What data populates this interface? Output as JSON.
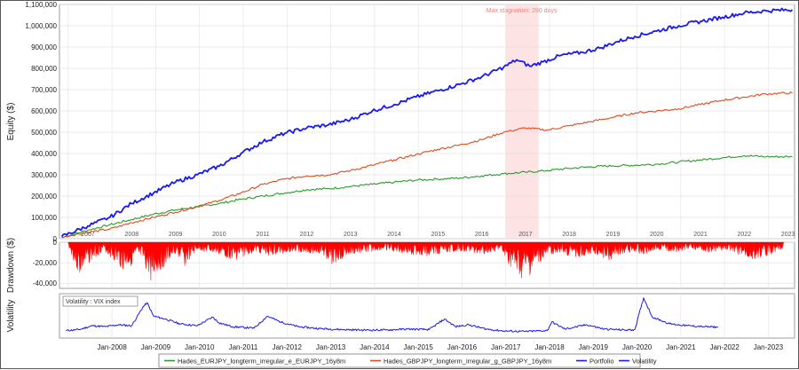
{
  "chart_data": [
    {
      "type": "line",
      "title": "",
      "ylabel": "Equity ($)",
      "ylim": [
        0,
        1100000
      ],
      "yticks": [
        "0",
        "100,000",
        "200,000",
        "300,000",
        "400,000",
        "500,000",
        "600,000",
        "700,000",
        "800,000",
        "900,000",
        "1,000,000",
        "1,100,000"
      ],
      "year_labels": [
        "2007",
        "2008",
        "2009",
        "2010",
        "2011",
        "2012",
        "2013",
        "2014",
        "2015",
        "2016",
        "2017",
        "2018",
        "2019",
        "2020",
        "2021",
        "2022",
        "2023"
      ],
      "grid": true,
      "annotation": {
        "text": "Max stagnation: 280 days",
        "x_start": 2017.05,
        "x_end": 2017.8
      },
      "series": [
        {
          "name": "Hades_EURJPY_longterm_irregular_e_EURJPY_16y8m",
          "color": "#2a9a2a",
          "x": [
            2006.9,
            2007.5,
            2008.0,
            2008.5,
            2009.0,
            2009.5,
            2010.0,
            2010.5,
            2011.0,
            2011.5,
            2012.0,
            2012.5,
            2013.0,
            2013.5,
            2014.0,
            2014.5,
            2015.0,
            2015.5,
            2016.0,
            2016.5,
            2017.0,
            2017.5,
            2018.0,
            2018.5,
            2019.0,
            2019.5,
            2020.0,
            2020.5,
            2021.0,
            2021.5,
            2022.0,
            2022.5,
            2023.0,
            2023.6
          ],
          "y": [
            5000,
            40000,
            65000,
            90000,
            115000,
            135000,
            150000,
            165000,
            185000,
            200000,
            215000,
            230000,
            235000,
            245000,
            255000,
            265000,
            275000,
            280000,
            285000,
            295000,
            305000,
            312000,
            320000,
            330000,
            338000,
            342000,
            345000,
            350000,
            360000,
            370000,
            380000,
            390000,
            385000,
            385000
          ]
        },
        {
          "name": "Hades_GBPJPY_longterm_irregular_g_GBPJPY_16y8m",
          "color": "#e04a20",
          "x": [
            2006.9,
            2007.5,
            2008.0,
            2008.5,
            2009.0,
            2009.5,
            2010.0,
            2010.5,
            2011.0,
            2011.5,
            2012.0,
            2012.5,
            2013.0,
            2013.5,
            2014.0,
            2014.5,
            2015.0,
            2015.5,
            2016.0,
            2016.5,
            2017.0,
            2017.5,
            2018.0,
            2018.5,
            2019.0,
            2019.5,
            2020.0,
            2020.5,
            2021.0,
            2021.5,
            2022.0,
            2022.5,
            2023.0,
            2023.6
          ],
          "y": [
            8000,
            30000,
            45000,
            75000,
            100000,
            125000,
            150000,
            180000,
            215000,
            255000,
            280000,
            295000,
            300000,
            320000,
            345000,
            370000,
            395000,
            420000,
            440000,
            465000,
            500000,
            520000,
            510000,
            530000,
            550000,
            570000,
            590000,
            600000,
            610000,
            630000,
            650000,
            665000,
            680000,
            685000
          ]
        },
        {
          "name": "Portfolio",
          "color": "#1a1af0",
          "x": [
            2006.9,
            2007.5,
            2008.0,
            2008.5,
            2009.0,
            2009.5,
            2010.0,
            2010.5,
            2011.0,
            2011.5,
            2012.0,
            2012.5,
            2013.0,
            2013.5,
            2014.0,
            2014.5,
            2015.0,
            2015.5,
            2016.0,
            2016.5,
            2017.0,
            2017.3,
            2017.6,
            2017.9,
            2018.3,
            2018.8,
            2019.2,
            2019.6,
            2020.0,
            2020.5,
            2021.0,
            2021.5,
            2022.0,
            2022.5,
            2023.0,
            2023.6
          ],
          "y": [
            10000,
            60000,
            100000,
            165000,
            215000,
            265000,
            300000,
            340000,
            400000,
            455000,
            495000,
            520000,
            535000,
            560000,
            600000,
            630000,
            665000,
            695000,
            725000,
            760000,
            805000,
            840000,
            810000,
            830000,
            860000,
            875000,
            895000,
            925000,
            950000,
            975000,
            1000000,
            1020000,
            1040000,
            1060000,
            1070000,
            1075000
          ]
        }
      ]
    },
    {
      "type": "area",
      "ylabel": "Drawdown ($)",
      "ylim": [
        -45000,
        0
      ],
      "yticks": [
        "0",
        "-20,000",
        "-40,000"
      ],
      "series": [
        {
          "name": "Drawdown",
          "color": "#ff0000",
          "x": [
            2007.05,
            2007.3,
            2007.5,
            2007.85,
            2008.3,
            2008.7,
            2008.95,
            2009.25,
            2009.5,
            2009.7,
            2010.0,
            2010.4,
            2010.85,
            2011.3,
            2011.7,
            2012.2,
            2012.8,
            2013.1,
            2013.4,
            2013.8,
            2014.3,
            2014.8,
            2015.2,
            2015.7,
            2016.1,
            2016.5,
            2016.9,
            2017.15,
            2017.4,
            2017.6,
            2017.85,
            2018.2,
            2018.6,
            2019.0,
            2019.4,
            2019.8,
            2020.2,
            2020.5,
            2020.9,
            2021.3,
            2021.7,
            2022.2,
            2022.6,
            2023.0,
            2023.4
          ],
          "y": [
            -3000,
            -35000,
            -22000,
            -8000,
            -28000,
            -18000,
            -38000,
            -24000,
            -12000,
            -25000,
            -8000,
            -12000,
            -18000,
            -10000,
            -14000,
            -9000,
            -12000,
            -22000,
            -15000,
            -10000,
            -8000,
            -12000,
            -14000,
            -10000,
            -9000,
            -12000,
            -8000,
            -25000,
            -38000,
            -34000,
            -20000,
            -10000,
            -15000,
            -12000,
            -18000,
            -10000,
            -12000,
            -8000,
            -10000,
            -7000,
            -10000,
            -8000,
            -18000,
            -14000,
            -6000
          ]
        }
      ]
    },
    {
      "type": "line",
      "ylabel": "Volatility",
      "box_label": "Volatility : VIX index",
      "x_ticks": [
        "Jan-2008",
        "Jan-2009",
        "Jan-2010",
        "Jan-2011",
        "Jan-2012",
        "Jan-2013",
        "Jan-2014",
        "Jan-2015",
        "Jan-2016",
        "Jan-2017",
        "Jan-2018",
        "Jan-2019",
        "Jan-2020",
        "Jan-2021",
        "Jan-2022",
        "Jan-2023"
      ],
      "series": [
        {
          "name": "Volatility",
          "color": "#1a1af0",
          "x": [
            2007.0,
            2007.3,
            2007.6,
            2007.9,
            2008.2,
            2008.5,
            2008.75,
            2008.85,
            2009.0,
            2009.3,
            2009.6,
            2010.0,
            2010.35,
            2010.5,
            2010.8,
            2011.3,
            2011.6,
            2011.9,
            2012.3,
            2012.8,
            2013.3,
            2013.8,
            2014.3,
            2014.8,
            2015.3,
            2015.65,
            2015.9,
            2016.2,
            2016.6,
            2017.0,
            2017.5,
            2018.0,
            2018.1,
            2018.4,
            2018.9,
            2019.3,
            2019.8,
            2020.0,
            2020.2,
            2020.4,
            2020.8,
            2021.2,
            2021.6,
            2021.9
          ],
          "y": [
            12,
            14,
            22,
            20,
            24,
            22,
            60,
            70,
            42,
            35,
            26,
            22,
            40,
            28,
            20,
            17,
            42,
            30,
            20,
            16,
            14,
            13,
            13,
            15,
            14,
            36,
            20,
            24,
            15,
            11,
            10,
            12,
            30,
            15,
            24,
            15,
            13,
            14,
            80,
            40,
            26,
            22,
            20,
            19
          ]
        }
      ]
    }
  ],
  "legend": [
    {
      "label": "Hades_EURJPY_longterm_irregular_e_EURJPY_16y8m",
      "color": "#2a9a2a"
    },
    {
      "label": "Hades_GBPJPY_longterm_irregular_g_GBPJPY_16y8m",
      "color": "#e04a20"
    },
    {
      "label": "Portfolio",
      "color": "#1a1af0"
    },
    {
      "label": "Volatility",
      "color": "#1a1af0"
    }
  ]
}
